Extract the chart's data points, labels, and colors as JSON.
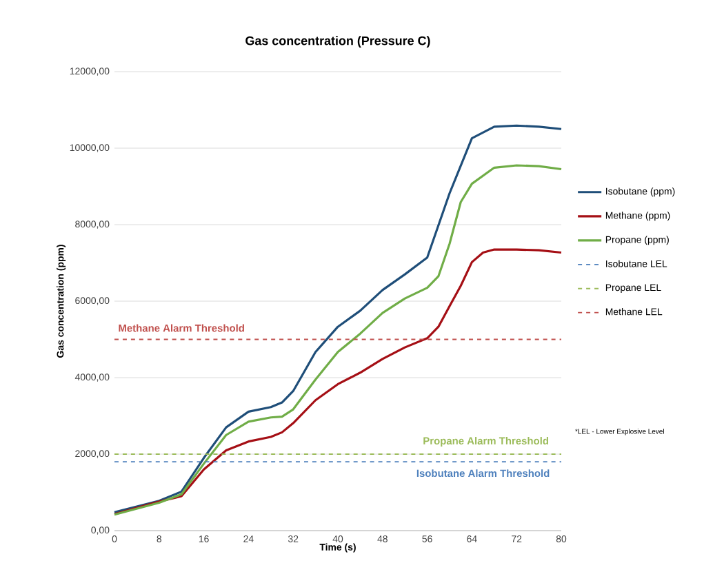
{
  "chart_data": {
    "type": "line",
    "title": "Gas concentration (Pressure C)",
    "xlabel": "Time (s)",
    "ylabel": "Gas concentration (ppm)",
    "xlim": [
      0,
      80
    ],
    "xticks": [
      0,
      8,
      16,
      24,
      32,
      40,
      48,
      56,
      64,
      72,
      80
    ],
    "ylim": [
      0,
      12000
    ],
    "yticks": [
      {
        "value": 0,
        "label": "0,00"
      },
      {
        "value": 2000,
        "label": "2000,00"
      },
      {
        "value": 4000,
        "label": "4000,00"
      },
      {
        "value": 6000,
        "label": "6000,00"
      },
      {
        "value": 8000,
        "label": "8000,00"
      },
      {
        "value": 10000,
        "label": "10000,00"
      },
      {
        "value": 12000,
        "label": "12000,00"
      }
    ],
    "grid": "y",
    "legend": "right",
    "series": [
      {
        "name": "Isobutane (ppm)",
        "color": "#1f4e79",
        "x": [
          0,
          8,
          12,
          16,
          20,
          24,
          28,
          30,
          32,
          36,
          40,
          44,
          48,
          52,
          56,
          60,
          64,
          68,
          72,
          76,
          80
        ],
        "values": [
          480,
          780,
          1020,
          1900,
          2700,
          3110,
          3230,
          3350,
          3650,
          4670,
          5330,
          5750,
          6290,
          6700,
          7140,
          8820,
          10260,
          10560,
          10590,
          10560,
          10500
        ]
      },
      {
        "name": "Methane (ppm)",
        "color": "#a50f15",
        "x": [
          0,
          8,
          12,
          16,
          20,
          24,
          28,
          30,
          32,
          36,
          40,
          44,
          48,
          52,
          56,
          58,
          60,
          62,
          64,
          66,
          68,
          72,
          76,
          80
        ],
        "values": [
          430,
          760,
          900,
          1600,
          2100,
          2330,
          2450,
          2570,
          2810,
          3410,
          3830,
          4130,
          4490,
          4790,
          5030,
          5330,
          5870,
          6400,
          7020,
          7270,
          7350,
          7350,
          7330,
          7270
        ]
      },
      {
        "name": "Propane (ppm)",
        "color": "#70ad47",
        "x": [
          0,
          8,
          12,
          16,
          20,
          24,
          28,
          30,
          32,
          36,
          40,
          44,
          48,
          52,
          56,
          58,
          60,
          62,
          64,
          68,
          72,
          76,
          80
        ],
        "values": [
          420,
          730,
          950,
          1750,
          2500,
          2850,
          2960,
          2980,
          3170,
          3950,
          4670,
          5150,
          5690,
          6070,
          6350,
          6650,
          7500,
          8590,
          9070,
          9490,
          9550,
          9530,
          9450
        ]
      },
      {
        "name": "Isobutane LEL",
        "color": "#4f81bd",
        "line_style": "dashed",
        "x": [
          0,
          80
        ],
        "values": [
          1800,
          1800
        ]
      },
      {
        "name": "Propane LEL",
        "color": "#9bbb59",
        "line_style": "dashed",
        "x": [
          0,
          80
        ],
        "values": [
          2000,
          2000
        ]
      },
      {
        "name": "Methane LEL",
        "color": "#c0504d",
        "line_style": "dashed",
        "x": [
          0,
          80
        ],
        "values": [
          5000,
          5000
        ]
      }
    ],
    "annotations": [
      {
        "text": "Methane Alarm Threshold",
        "x": 12,
        "y": 5000
      },
      {
        "text": "Propane Alarm Threshold",
        "x": 66.5,
        "y": 2000
      },
      {
        "text": "Isobutane Alarm Threshold",
        "x": 66,
        "y": 1800
      },
      "*LEL - Lower Explosive Level"
    ]
  }
}
